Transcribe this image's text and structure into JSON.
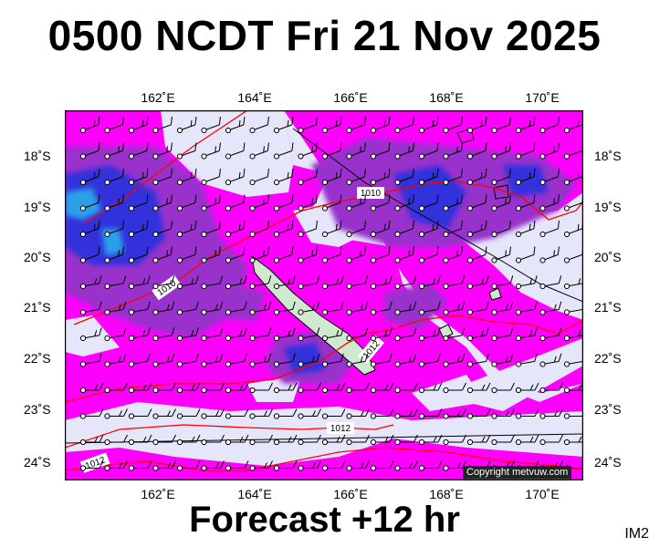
{
  "title": "0500 NCDT Fri 21 Nov 2025",
  "footer": "Forecast +12 hr",
  "image_id_label": "IM2",
  "copyright": "Copyright metvuw.com",
  "lon_labels": [
    "162˚E",
    "164˚E",
    "166˚E",
    "168˚E",
    "170˚E"
  ],
  "lat_labels": [
    "18˚S",
    "19˚S",
    "20˚S",
    "21˚S",
    "22˚S",
    "23˚S",
    "24˚S"
  ],
  "isobar_labels": [
    "1010",
    "1010",
    "1012",
    "1012",
    "1012"
  ],
  "colors": {
    "background": "#e6e6fa",
    "magenta": "#ff00ff",
    "purple": "#9932cc",
    "blue": "#3333dd",
    "cyan": "#2aa0e8",
    "isobar": "#ff0000"
  }
}
